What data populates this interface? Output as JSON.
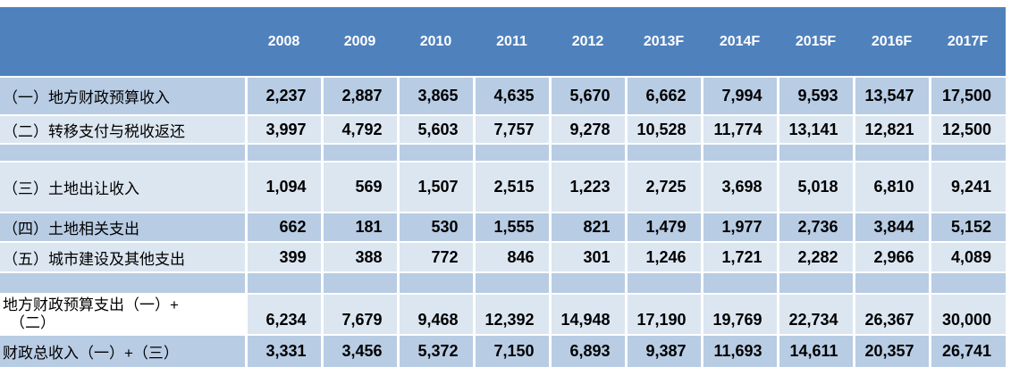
{
  "colors": {
    "header_bg": "#4f81bd",
    "row_dark": "#b8cce4",
    "row_light": "#dce6f1",
    "header_text": "#ffffff",
    "body_text": "#000000"
  },
  "chart_data": {
    "type": "table",
    "corner_label": "",
    "columns": [
      "2008",
      "2009",
      "2010",
      "2011",
      "2012",
      "2013F",
      "2014F",
      "2015F",
      "2016F",
      "2017F"
    ],
    "rows": [
      {
        "label": "（一）地方财政预算收入",
        "values": [
          "2,237",
          "2,887",
          "3,865",
          "4,635",
          "5,670",
          "6,662",
          "7,994",
          "9,593",
          "13,547",
          "17,500"
        ]
      },
      {
        "label": "（二）转移支付与税收返还",
        "values": [
          "3,997",
          "4,792",
          "5,603",
          "7,757",
          "9,278",
          "10,528",
          "11,774",
          "13,141",
          "12,821",
          "12,500"
        ]
      },
      {
        "label": "（三）土地出让收入",
        "values": [
          "1,094",
          "569",
          "1,507",
          "2,515",
          "1,223",
          "2,725",
          "3,698",
          "5,018",
          "6,810",
          "9,241"
        ]
      },
      {
        "label": "（四）土地相关支出",
        "values": [
          "662",
          "181",
          "530",
          "1,555",
          "821",
          "1,479",
          "1,977",
          "2,736",
          "3,844",
          "5,152"
        ]
      },
      {
        "label": "（五）城市建设及其他支出",
        "values": [
          "399",
          "388",
          "772",
          "846",
          "301",
          "1,246",
          "1,721",
          "2,282",
          "2,966",
          "4,089"
        ]
      },
      {
        "label_lines": [
          "地方财政预算支出（一）+",
          "（二）"
        ],
        "values": [
          "6,234",
          "7,679",
          "9,468",
          "12,392",
          "14,948",
          "17,190",
          "19,769",
          "22,734",
          "26,367",
          "30,000"
        ]
      },
      {
        "label": "财政总收入（一）+（三）",
        "values": [
          "3,331",
          "3,456",
          "5,372",
          "7,150",
          "6,893",
          "9,387",
          "11,693",
          "14,611",
          "20,357",
          "26,741"
        ]
      }
    ]
  }
}
